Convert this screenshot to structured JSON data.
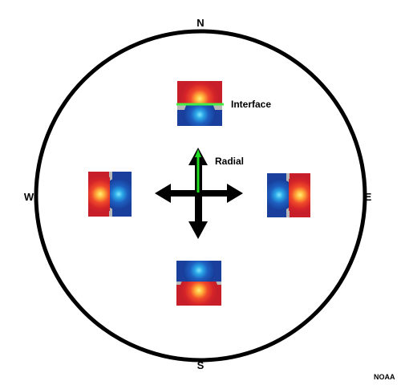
{
  "compass": {
    "north": "N",
    "south": "S",
    "west": "W",
    "east": "E"
  },
  "labels": {
    "interface": "Interface",
    "radial": "Radial"
  },
  "credit": "NOAA",
  "colors": {
    "circle": "#000000",
    "arrow": "#000000",
    "radial_line": "#22dd22",
    "interface_line": "#44ee44",
    "inbound_blue": "#1a3f9c",
    "outbound_red": "#d0202a",
    "zero_gray": "#b8b8b8"
  }
}
